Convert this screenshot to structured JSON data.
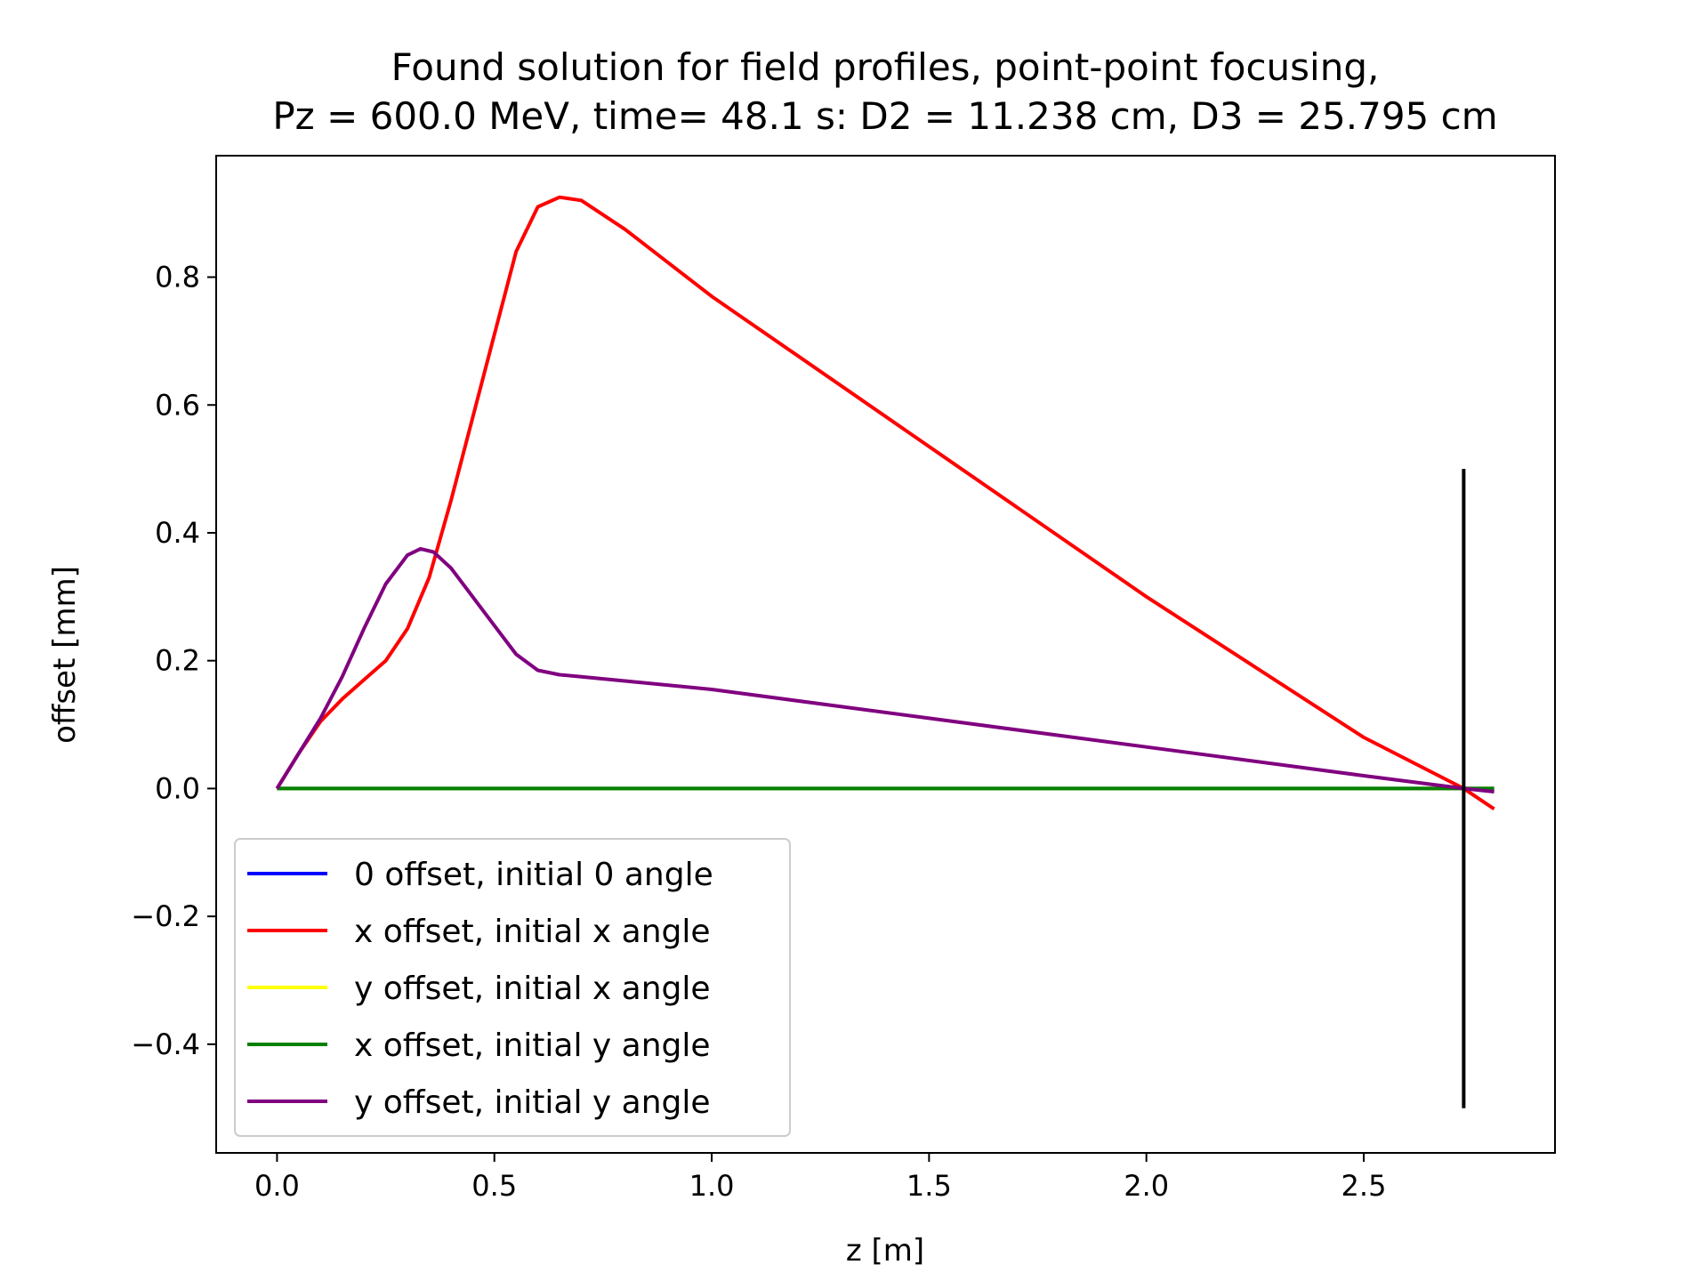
{
  "chart_data": {
    "type": "line",
    "title_line1": "Found solution for field profiles, point-point focusing,",
    "title_line2": "Pz = 600.0 MeV, time= 48.1 s: D2 = 11.238 cm, D3 = 25.795 cm",
    "xlabel": "z [m]",
    "ylabel": "offset [mm]",
    "xlim": [
      -0.14,
      2.94
    ],
    "ylim": [
      -0.57,
      0.99
    ],
    "xticks": [
      0.0,
      0.5,
      1.0,
      1.5,
      2.0,
      2.5
    ],
    "xtick_labels": [
      "0.0",
      "0.5",
      "1.0",
      "1.5",
      "2.0",
      "2.5"
    ],
    "yticks": [
      -0.4,
      -0.2,
      0.0,
      0.2,
      0.4,
      0.6,
      0.8
    ],
    "ytick_labels": [
      "−0.4",
      "−0.2",
      "0.0",
      "0.2",
      "0.4",
      "0.6",
      "0.8"
    ],
    "grid": false,
    "legend_position": "lower-left",
    "series": [
      {
        "name": "0 offset, initial 0 angle",
        "color": "#0000ff",
        "points": [
          [
            0.0,
            0.0
          ],
          [
            2.8,
            0.0
          ]
        ]
      },
      {
        "name": "x offset, initial x angle",
        "color": "#ff0000",
        "points": [
          [
            0.0,
            0.0
          ],
          [
            0.05,
            0.055
          ],
          [
            0.1,
            0.105
          ],
          [
            0.15,
            0.14
          ],
          [
            0.2,
            0.17
          ],
          [
            0.25,
            0.2
          ],
          [
            0.3,
            0.25
          ],
          [
            0.35,
            0.33
          ],
          [
            0.4,
            0.45
          ],
          [
            0.45,
            0.58
          ],
          [
            0.5,
            0.71
          ],
          [
            0.55,
            0.84
          ],
          [
            0.6,
            0.91
          ],
          [
            0.65,
            0.925
          ],
          [
            0.7,
            0.92
          ],
          [
            0.8,
            0.875
          ],
          [
            1.0,
            0.77
          ],
          [
            1.5,
            0.535
          ],
          [
            2.0,
            0.3
          ],
          [
            2.5,
            0.08
          ],
          [
            2.73,
            0.0
          ],
          [
            2.8,
            -0.032
          ]
        ]
      },
      {
        "name": "y offset, initial x angle",
        "color": "#ffff00",
        "points": [
          [
            0.0,
            0.0
          ],
          [
            2.8,
            0.0
          ]
        ]
      },
      {
        "name": "x offset, initial y angle",
        "color": "#008000",
        "points": [
          [
            0.0,
            0.0
          ],
          [
            2.8,
            0.0
          ]
        ]
      },
      {
        "name": "y offset, initial y angle",
        "color": "#800080",
        "points": [
          [
            0.0,
            0.0
          ],
          [
            0.05,
            0.055
          ],
          [
            0.1,
            0.11
          ],
          [
            0.15,
            0.175
          ],
          [
            0.2,
            0.25
          ],
          [
            0.25,
            0.32
          ],
          [
            0.3,
            0.365
          ],
          [
            0.33,
            0.375
          ],
          [
            0.36,
            0.37
          ],
          [
            0.4,
            0.345
          ],
          [
            0.45,
            0.3
          ],
          [
            0.5,
            0.255
          ],
          [
            0.55,
            0.21
          ],
          [
            0.6,
            0.185
          ],
          [
            0.65,
            0.178
          ],
          [
            0.7,
            0.175
          ],
          [
            1.0,
            0.155
          ],
          [
            1.5,
            0.11
          ],
          [
            2.0,
            0.065
          ],
          [
            2.5,
            0.02
          ],
          [
            2.73,
            0.0
          ],
          [
            2.8,
            -0.005
          ]
        ]
      }
    ],
    "vertical_line": {
      "color": "#000000",
      "x": 2.73,
      "y_from": -0.5,
      "y_to": 0.5
    }
  }
}
